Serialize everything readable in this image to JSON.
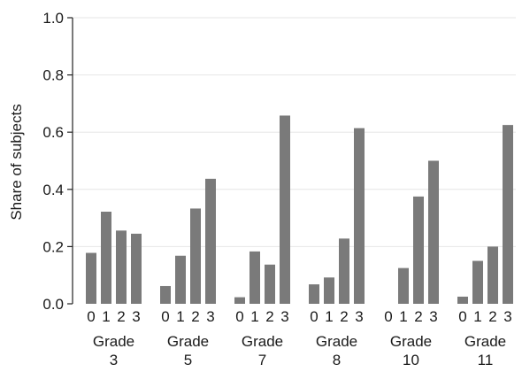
{
  "chart_data": {
    "type": "bar",
    "title": "",
    "xlabel": "",
    "ylabel": "Share of subjects",
    "ylim": [
      0,
      1.0
    ],
    "yticks": [
      "0.0",
      "0.2",
      "0.4",
      "0.6",
      "0.8",
      "1.0"
    ],
    "ytick_values": [
      0,
      0.2,
      0.4,
      0.6,
      0.8,
      1.0
    ],
    "grid": true,
    "legend": "none",
    "bar_color": "#7a7a7a",
    "sub_categories": [
      "0",
      "1",
      "2",
      "3"
    ],
    "groups": [
      {
        "label_line1": "Grade",
        "label_line2": "3",
        "values": [
          0.178,
          0.322,
          0.256,
          0.245
        ]
      },
      {
        "label_line1": "Grade",
        "label_line2": "5",
        "values": [
          0.062,
          0.168,
          0.333,
          0.437
        ]
      },
      {
        "label_line1": "Grade",
        "label_line2": "7",
        "values": [
          0.023,
          0.183,
          0.137,
          0.658
        ]
      },
      {
        "label_line1": "Grade",
        "label_line2": "8",
        "values": [
          0.068,
          0.092,
          0.228,
          0.614
        ]
      },
      {
        "label_line1": "Grade",
        "label_line2": "10",
        "values": [
          0.0,
          0.125,
          0.375,
          0.5
        ]
      },
      {
        "label_line1": "Grade",
        "label_line2": "11",
        "values": [
          0.025,
          0.15,
          0.2,
          0.625
        ]
      }
    ]
  }
}
